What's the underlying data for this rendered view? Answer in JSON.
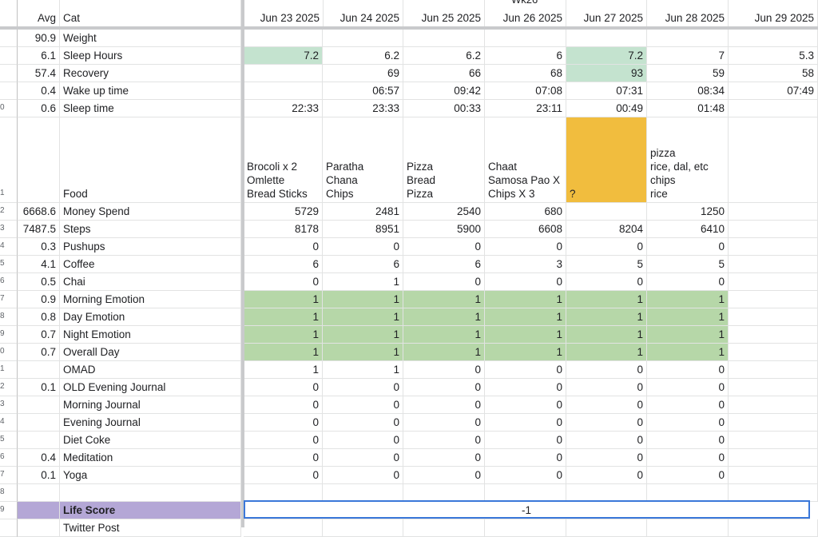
{
  "week_label": "Wk26",
  "header": {
    "avg": "Avg",
    "cat": "Cat",
    "dates": [
      "Jun 23 2025",
      "Jun 24 2025",
      "Jun 25 2025",
      "Jun 26 2025",
      "Jun 27 2025",
      "Jun 28 2025",
      "Jun 29 2025"
    ]
  },
  "rows": [
    {
      "num": "",
      "avg": "90.9",
      "cat": "Weight",
      "vals": [
        "",
        "",
        "",
        "",
        "",
        "",
        ""
      ]
    },
    {
      "num": "",
      "avg": "6.1",
      "cat": "Sleep Hours",
      "vals": [
        "7.2",
        "6.2",
        "6.2",
        "6",
        "7.2",
        "7",
        "5.3"
      ]
    },
    {
      "num": "",
      "avg": "57.4",
      "cat": "Recovery",
      "vals": [
        "",
        "69",
        "66",
        "68",
        "93",
        "59",
        "58"
      ]
    },
    {
      "num": "",
      "avg": "0.4",
      "cat": "Wake up time",
      "vals": [
        "",
        "06:57",
        "09:42",
        "07:08",
        "07:31",
        "08:34",
        "07:49"
      ]
    },
    {
      "num": "0",
      "avg": "0.6",
      "cat": "Sleep time",
      "vals": [
        "22:33",
        "23:33",
        "00:33",
        "23:11",
        "00:49",
        "01:48",
        ""
      ]
    },
    {
      "num": "1",
      "avg": "",
      "cat": "Food",
      "vals": [
        "Brocoli x 2\nOmlette\nBread Sticks",
        "Paratha\nChana\nChips",
        "Pizza\nBread\nPizza",
        "Chaat\nSamosa Pao X\nChips X 3",
        "?",
        "pizza\nrice, dal, etc\nchips\nrice",
        ""
      ]
    },
    {
      "num": "2",
      "avg": "6668.6",
      "cat": "Money Spend",
      "vals": [
        "5729",
        "2481",
        "2540",
        "680",
        "",
        "1250",
        ""
      ]
    },
    {
      "num": "3",
      "avg": "7487.5",
      "cat": "Steps",
      "vals": [
        "8178",
        "8951",
        "5900",
        "6608",
        "8204",
        "6410",
        ""
      ]
    },
    {
      "num": "4",
      "avg": "0.3",
      "cat": "Pushups",
      "vals": [
        "0",
        "0",
        "0",
        "0",
        "0",
        "0",
        ""
      ]
    },
    {
      "num": "5",
      "avg": "4.1",
      "cat": "Coffee",
      "vals": [
        "6",
        "6",
        "6",
        "3",
        "5",
        "5",
        ""
      ]
    },
    {
      "num": "6",
      "avg": "0.5",
      "cat": "Chai",
      "vals": [
        "0",
        "1",
        "0",
        "0",
        "0",
        "0",
        ""
      ]
    },
    {
      "num": "7",
      "avg": "0.9",
      "cat": "Morning Emotion",
      "vals": [
        "1",
        "1",
        "1",
        "1",
        "1",
        "1",
        ""
      ]
    },
    {
      "num": "8",
      "avg": "0.8",
      "cat": "Day Emotion",
      "vals": [
        "1",
        "1",
        "1",
        "1",
        "1",
        "1",
        ""
      ]
    },
    {
      "num": "9",
      "avg": "0.7",
      "cat": "Night Emotion",
      "vals": [
        "1",
        "1",
        "1",
        "1",
        "1",
        "1",
        ""
      ]
    },
    {
      "num": "0",
      "avg": "0.7",
      "cat": "Overall Day",
      "vals": [
        "1",
        "1",
        "1",
        "1",
        "1",
        "1",
        ""
      ]
    },
    {
      "num": "1",
      "avg": "",
      "cat": "OMAD",
      "vals": [
        "1",
        "1",
        "0",
        "0",
        "0",
        "0",
        ""
      ]
    },
    {
      "num": "2",
      "avg": "0.1",
      "cat": "OLD Evening Journal",
      "vals": [
        "0",
        "0",
        "0",
        "0",
        "0",
        "0",
        ""
      ]
    },
    {
      "num": "3",
      "avg": "",
      "cat": "Morning Journal",
      "vals": [
        "0",
        "0",
        "0",
        "0",
        "0",
        "0",
        ""
      ]
    },
    {
      "num": "4",
      "avg": "",
      "cat": "Evening Journal",
      "vals": [
        "0",
        "0",
        "0",
        "0",
        "0",
        "0",
        ""
      ]
    },
    {
      "num": "5",
      "avg": "",
      "cat": "Diet Coke",
      "vals": [
        "0",
        "0",
        "0",
        "0",
        "0",
        "0",
        ""
      ]
    },
    {
      "num": "6",
      "avg": "0.4",
      "cat": "Meditation",
      "vals": [
        "0",
        "0",
        "0",
        "0",
        "0",
        "0",
        ""
      ]
    },
    {
      "num": "7",
      "avg": "0.1",
      "cat": "Yoga",
      "vals": [
        "0",
        "0",
        "0",
        "0",
        "0",
        "0",
        ""
      ]
    },
    {
      "num": "8",
      "avg": "",
      "cat": "",
      "vals": [
        "",
        "",
        "",
        "",
        "",
        "",
        ""
      ]
    },
    {
      "num": "9",
      "avg": "",
      "cat": "Life Score",
      "vals": [
        "-1"
      ]
    },
    {
      "num": "",
      "avg": "",
      "cat": "Twitter Post",
      "vals": [
        "",
        "",
        "",
        "",
        "",
        "",
        ""
      ]
    }
  ],
  "colors": {
    "sleep_highlight": "#c4e3cf",
    "emotion_fill": "#b6d7a8",
    "unknown_food_fill": "#f1bd3e",
    "life_score_fill": "#b4a7d6",
    "selection": "#3a77d9"
  }
}
